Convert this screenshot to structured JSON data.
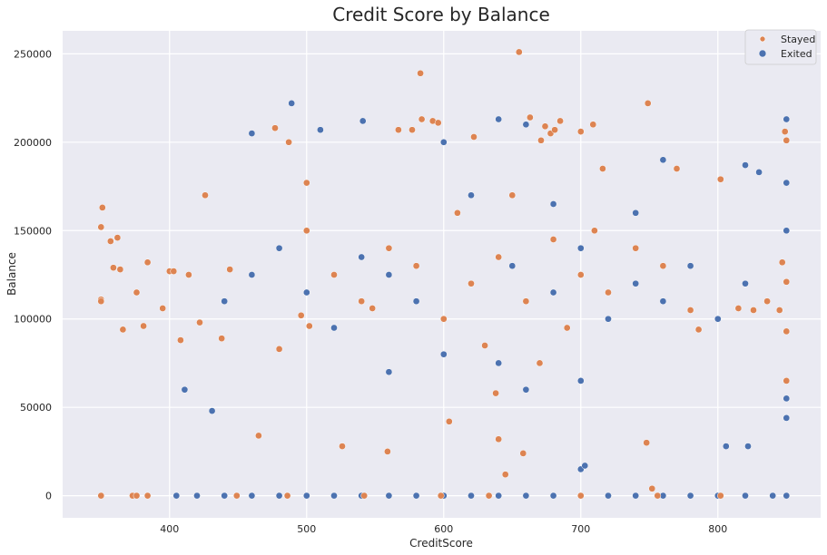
{
  "chart_data": {
    "type": "scatter",
    "title": "Credit Score by Balance",
    "xlabel": "CreditScore",
    "ylabel": "Balance",
    "xlim": [
      322,
      875
    ],
    "ylim": [
      -12500,
      263000
    ],
    "xticks": [
      400,
      500,
      600,
      700,
      800
    ],
    "yticks": [
      0,
      50000,
      100000,
      150000,
      200000,
      250000
    ],
    "grid": true,
    "legend_position": "top-right",
    "series": [
      {
        "name": "Stayed",
        "color": "#dd8452",
        "points": [
          [
            350,
            152000
          ],
          [
            351,
            163000
          ],
          [
            350,
            111000
          ],
          [
            350,
            110000
          ],
          [
            357,
            144000
          ],
          [
            359,
            129000
          ],
          [
            362,
            146000
          ],
          [
            364,
            128000
          ],
          [
            366,
            94000
          ],
          [
            376,
            115000
          ],
          [
            381,
            96000
          ],
          [
            384,
            132000
          ],
          [
            395,
            106000
          ],
          [
            400,
            127000
          ],
          [
            403,
            127000
          ],
          [
            408,
            88000
          ],
          [
            414,
            125000
          ],
          [
            422,
            98000
          ],
          [
            426,
            170000
          ],
          [
            438,
            89000
          ],
          [
            444,
            128000
          ],
          [
            465,
            34000
          ],
          [
            477,
            208000
          ],
          [
            480,
            83000
          ],
          [
            487,
            200000
          ],
          [
            496,
            102000
          ],
          [
            500,
            177000
          ],
          [
            502,
            96000
          ],
          [
            526,
            28000
          ],
          [
            548,
            106000
          ],
          [
            559,
            25000
          ],
          [
            567,
            207000
          ],
          [
            577,
            207000
          ],
          [
            583,
            239000
          ],
          [
            584,
            213000
          ],
          [
            592,
            212000
          ],
          [
            596,
            211000
          ],
          [
            604,
            42000
          ],
          [
            622,
            203000
          ],
          [
            638,
            58000
          ],
          [
            640,
            32000
          ],
          [
            645,
            12000
          ],
          [
            655,
            251000
          ],
          [
            658,
            24000
          ],
          [
            663,
            214000
          ],
          [
            671,
            201000
          ],
          [
            674,
            209000
          ],
          [
            678,
            205000
          ],
          [
            681,
            207000
          ],
          [
            685,
            212000
          ],
          [
            700,
            206000
          ],
          [
            709,
            210000
          ],
          [
            716,
            185000
          ],
          [
            749,
            222000
          ],
          [
            748,
            30000
          ],
          [
            752,
            4000
          ],
          [
            770,
            185000
          ],
          [
            786,
            94000
          ],
          [
            802,
            179000
          ],
          [
            815,
            106000
          ],
          [
            826,
            105000
          ],
          [
            836,
            110000
          ],
          [
            845,
            105000
          ],
          [
            847,
            132000
          ],
          [
            849,
            206000
          ],
          [
            850,
            201000
          ],
          [
            850,
            121000
          ],
          [
            850,
            93000
          ],
          [
            850,
            65000
          ],
          [
            620,
            120000
          ],
          [
            640,
            135000
          ],
          [
            660,
            110000
          ],
          [
            680,
            145000
          ],
          [
            700,
            125000
          ],
          [
            720,
            115000
          ],
          [
            600,
            100000
          ],
          [
            580,
            130000
          ],
          [
            560,
            140000
          ],
          [
            540,
            110000
          ],
          [
            520,
            125000
          ],
          [
            500,
            150000
          ],
          [
            760,
            130000
          ],
          [
            780,
            105000
          ],
          [
            740,
            140000
          ],
          [
            690,
            95000
          ],
          [
            630,
            85000
          ],
          [
            610,
            160000
          ],
          [
            650,
            170000
          ],
          [
            670,
            75000
          ],
          [
            710,
            150000
          ],
          [
            350,
            0
          ],
          [
            373,
            0
          ],
          [
            376,
            0
          ],
          [
            384,
            0
          ],
          [
            449,
            0
          ],
          [
            486,
            0
          ],
          [
            542,
            0
          ],
          [
            598,
            0
          ],
          [
            633,
            0
          ],
          [
            700,
            0
          ],
          [
            756,
            0
          ],
          [
            802,
            0
          ]
        ]
      },
      {
        "name": "Exited",
        "color": "#4c72b0",
        "points": [
          [
            405,
            0
          ],
          [
            420,
            0
          ],
          [
            440,
            0
          ],
          [
            460,
            0
          ],
          [
            480,
            0
          ],
          [
            500,
            0
          ],
          [
            520,
            0
          ],
          [
            540,
            0
          ],
          [
            560,
            0
          ],
          [
            580,
            0
          ],
          [
            600,
            0
          ],
          [
            620,
            0
          ],
          [
            640,
            0
          ],
          [
            660,
            0
          ],
          [
            680,
            0
          ],
          [
            700,
            0
          ],
          [
            720,
            0
          ],
          [
            740,
            0
          ],
          [
            760,
            0
          ],
          [
            780,
            0
          ],
          [
            800,
            0
          ],
          [
            820,
            0
          ],
          [
            840,
            0
          ],
          [
            850,
            0
          ],
          [
            489,
            222000
          ],
          [
            541,
            212000
          ],
          [
            700,
            15000
          ],
          [
            703,
            17000
          ],
          [
            806,
            28000
          ],
          [
            822,
            28000
          ],
          [
            411,
            60000
          ],
          [
            431,
            48000
          ],
          [
            850,
            213000
          ],
          [
            850,
            177000
          ],
          [
            850,
            150000
          ],
          [
            850,
            44000
          ],
          [
            850,
            55000
          ],
          [
            760,
            190000
          ],
          [
            820,
            187000
          ],
          [
            830,
            183000
          ],
          [
            510,
            207000
          ],
          [
            460,
            205000
          ],
          [
            640,
            213000
          ],
          [
            660,
            210000
          ],
          [
            600,
            200000
          ],
          [
            620,
            120000
          ],
          [
            650,
            130000
          ],
          [
            680,
            115000
          ],
          [
            700,
            140000
          ],
          [
            720,
            100000
          ],
          [
            580,
            110000
          ],
          [
            560,
            125000
          ],
          [
            540,
            135000
          ],
          [
            520,
            95000
          ],
          [
            740,
            120000
          ],
          [
            760,
            110000
          ],
          [
            780,
            130000
          ],
          [
            500,
            115000
          ],
          [
            480,
            140000
          ],
          [
            460,
            125000
          ],
          [
            800,
            100000
          ],
          [
            820,
            120000
          ],
          [
            440,
            110000
          ],
          [
            600,
            80000
          ],
          [
            640,
            75000
          ],
          [
            680,
            165000
          ],
          [
            620,
            170000
          ],
          [
            660,
            60000
          ],
          [
            700,
            65000
          ],
          [
            560,
            70000
          ],
          [
            740,
            160000
          ]
        ]
      }
    ]
  }
}
